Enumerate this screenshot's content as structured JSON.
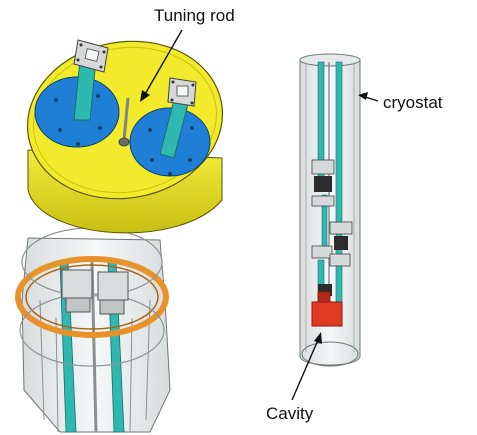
{
  "labels": {
    "tuning_rod": "Tuning rod",
    "cryostat": "cryostat",
    "cavity": "Cavity"
  },
  "colors": {
    "lid_yellow": "#f2ea2a",
    "flange_blue": "#1f7fd6",
    "rod_teal": "#2fb8b0",
    "ring_orange": "#e8922a",
    "cavity_red": "#e23a22",
    "glass_grey": "#c9cfcf"
  }
}
